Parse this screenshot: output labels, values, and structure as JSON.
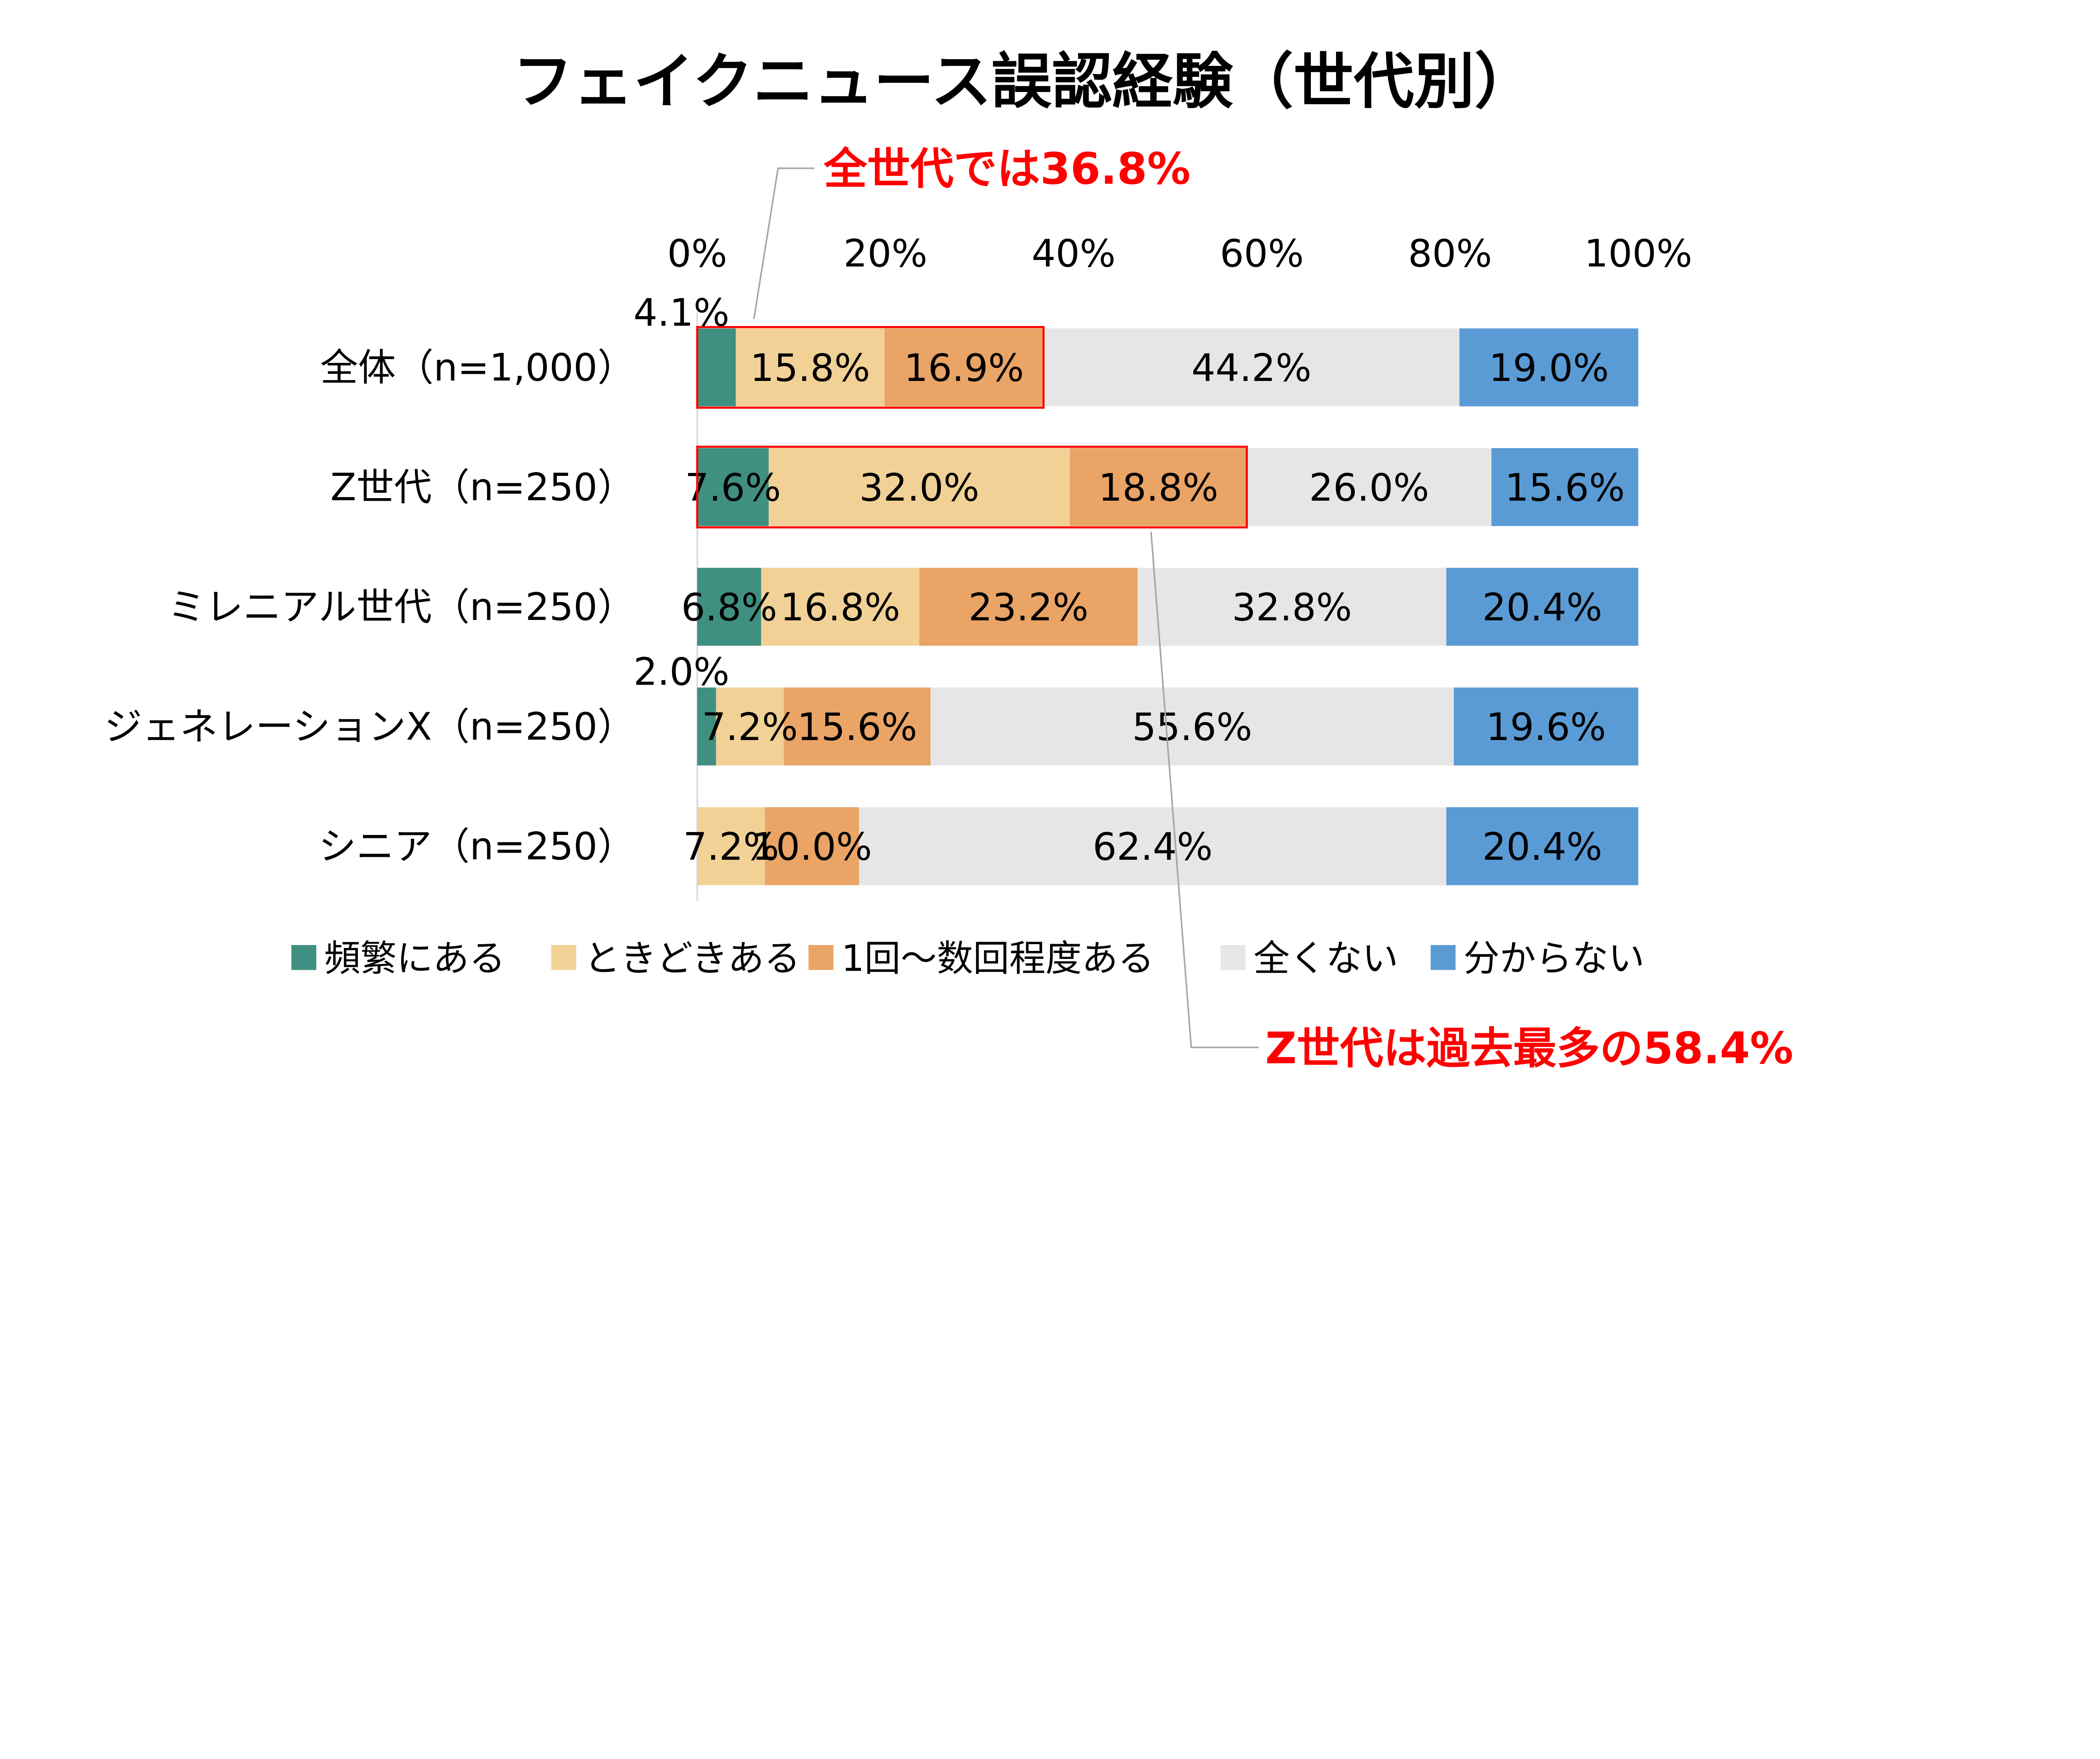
{
  "chart_data": {
    "type": "bar",
    "orientation": "horizontal-stacked-100",
    "title": "フェイクニュース誤認経験（世代別）",
    "categories": [
      "全体（n=1,000）",
      "Z世代（n=250）",
      "ミレニアル世代（n=250）",
      "ジェネレーションX（n=250）",
      "シニア（n=250）"
    ],
    "x_ticks": [
      "0%",
      "20%",
      "40%",
      "60%",
      "80%",
      "100%"
    ],
    "xlim": [
      0,
      100
    ],
    "grid": false,
    "legend_position": "bottom",
    "series": [
      {
        "name": "頻繁にある",
        "color": "#3F9080",
        "values": [
          4.1,
          7.6,
          6.8,
          2.0,
          0
        ],
        "labels": [
          "4.1%",
          "7.6%",
          "6.8%",
          "2.0%",
          ""
        ]
      },
      {
        "name": "ときどきある",
        "color": "#F2D196",
        "values": [
          15.8,
          32.0,
          16.8,
          7.2,
          7.2
        ],
        "labels": [
          "15.8%",
          "32.0%",
          "16.8%",
          "7.2%",
          "7.2%"
        ]
      },
      {
        "name": "1回～数回程度ある",
        "color": "#E9A466",
        "values": [
          16.9,
          18.8,
          23.2,
          15.6,
          10.0
        ],
        "labels": [
          "16.9%",
          "18.8%",
          "23.2%",
          "15.6%",
          "10.0%"
        ]
      },
      {
        "name": "全くない",
        "color": "#E6E6E6",
        "values": [
          44.2,
          26.0,
          32.8,
          55.6,
          62.4
        ],
        "labels": [
          "44.2%",
          "26.0%",
          "32.8%",
          "55.6%",
          "62.4%"
        ]
      },
      {
        "name": "分からない",
        "color": "#5B9BD5",
        "values": [
          19.0,
          15.6,
          20.4,
          19.6,
          20.4
        ],
        "labels": [
          "19.0%",
          "15.6%",
          "20.4%",
          "19.6%",
          "20.4%"
        ]
      }
    ],
    "annotations": [
      {
        "text": "全世代では36.8%",
        "category_index": 0,
        "highlight_to": 36.8,
        "color": "#FF0000"
      },
      {
        "text": "Z世代は過去最多の58.4%",
        "category_index": 1,
        "highlight_to": 58.4,
        "color": "#FF0000"
      }
    ]
  }
}
